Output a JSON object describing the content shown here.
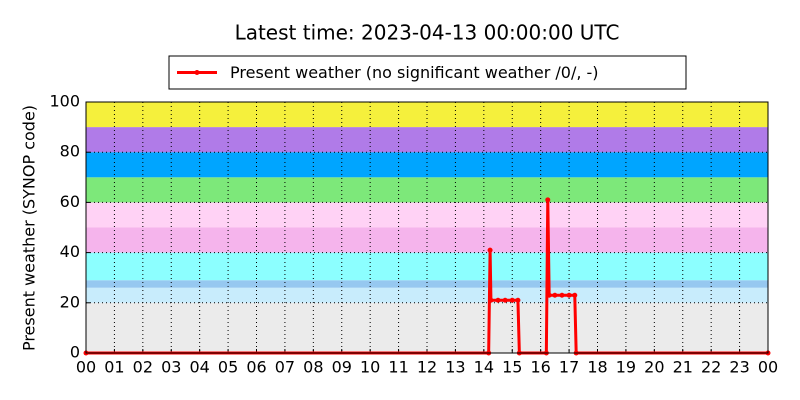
{
  "chart_data": {
    "type": "line",
    "title": "Latest time: 2023-04-13 00:00:00 UTC",
    "y_label": "Present weather (SYNOP code)",
    "x": [
      0,
      14.17,
      14.22,
      14.25,
      14.5,
      14.75,
      15.0,
      15.2,
      15.25,
      16.2,
      16.25,
      16.3,
      16.5,
      16.75,
      17.0,
      17.2,
      17.25,
      24
    ],
    "series": [
      {
        "name": "Present weather (no significant weather /0/, -)",
        "color": "#ff0000",
        "values": [
          0,
          0,
          41,
          21,
          21,
          21,
          21,
          21,
          0,
          0,
          61,
          23,
          23,
          23,
          23,
          23,
          0,
          0
        ]
      }
    ],
    "xlim": [
      0,
      24
    ],
    "xticks": [
      {
        "value": 0,
        "label": "00"
      },
      {
        "value": 1,
        "label": "01"
      },
      {
        "value": 2,
        "label": "02"
      },
      {
        "value": 3,
        "label": "03"
      },
      {
        "value": 4,
        "label": "04"
      },
      {
        "value": 5,
        "label": "05"
      },
      {
        "value": 6,
        "label": "06"
      },
      {
        "value": 7,
        "label": "07"
      },
      {
        "value": 8,
        "label": "08"
      },
      {
        "value": 9,
        "label": "09"
      },
      {
        "value": 10,
        "label": "10"
      },
      {
        "value": 11,
        "label": "11"
      },
      {
        "value": 12,
        "label": "12"
      },
      {
        "value": 13,
        "label": "13"
      },
      {
        "value": 14,
        "label": "14"
      },
      {
        "value": 15,
        "label": "15"
      },
      {
        "value": 16,
        "label": "16"
      },
      {
        "value": 17,
        "label": "17"
      },
      {
        "value": 18,
        "label": "18"
      },
      {
        "value": 19,
        "label": "19"
      },
      {
        "value": 20,
        "label": "20"
      },
      {
        "value": 21,
        "label": "21"
      },
      {
        "value": 22,
        "label": "22"
      },
      {
        "value": 23,
        "label": "23"
      },
      {
        "value": 24,
        "label": "00"
      }
    ],
    "ylim": [
      0,
      100
    ],
    "yticks": [
      0,
      20,
      40,
      60,
      80,
      100
    ],
    "grid": true,
    "legend": "top",
    "bands": [
      {
        "from": 0,
        "to": 20,
        "color": "#ebebeb"
      },
      {
        "from": 20,
        "to": 26,
        "color": "#c8ecfc"
      },
      {
        "from": 26,
        "to": 29,
        "color": "#96c8f0"
      },
      {
        "from": 29,
        "to": 40,
        "color": "#8cffff"
      },
      {
        "from": 40,
        "to": 50,
        "color": "#f5b4ec"
      },
      {
        "from": 50,
        "to": 60,
        "color": "#ffd2f5"
      },
      {
        "from": 60,
        "to": 70,
        "color": "#7de87a"
      },
      {
        "from": 70,
        "to": 80,
        "color": "#00a5ff"
      },
      {
        "from": 80,
        "to": 90,
        "color": "#b07be8"
      },
      {
        "from": 90,
        "to": 100,
        "color": "#f5f03c"
      }
    ]
  }
}
